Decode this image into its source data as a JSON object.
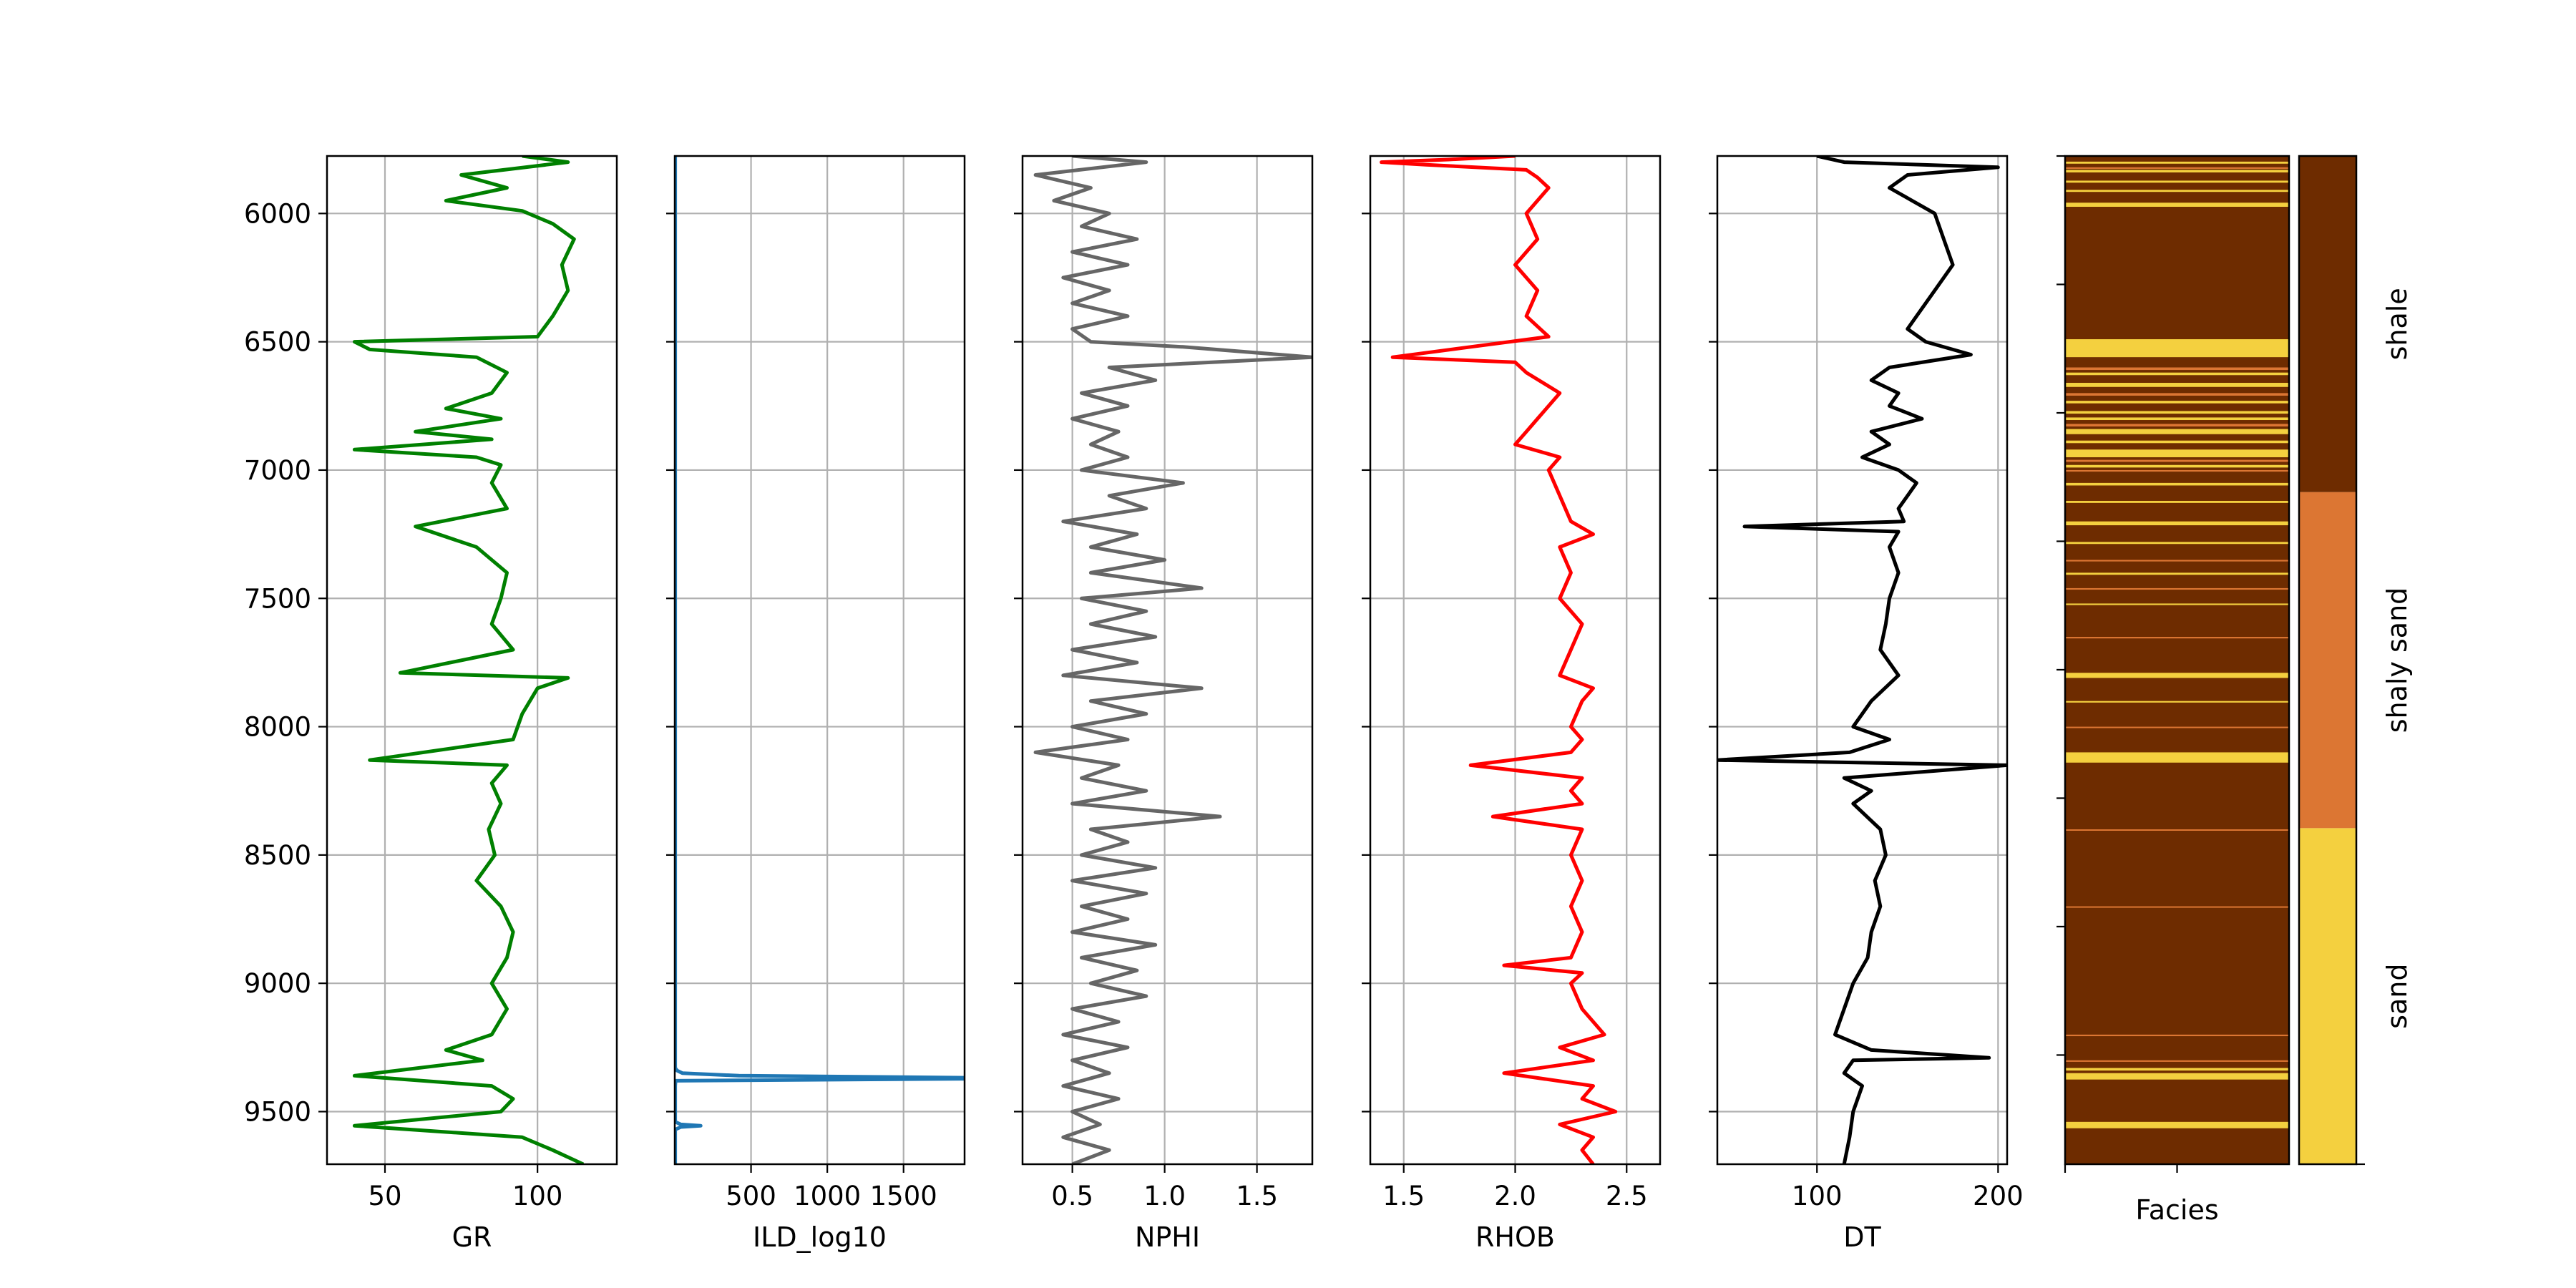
{
  "figure": {
    "y_axis": {
      "range": [
        5776,
        9705
      ],
      "inverted": true,
      "ticks": [
        6000,
        6500,
        7000,
        7500,
        8000,
        8500,
        9000,
        9500
      ],
      "tick_labels": [
        "6000",
        "6500",
        "7000",
        "7500",
        "8000",
        "8500",
        "9000",
        "9500"
      ]
    },
    "facies_colors": {
      "sand": "#F4D03F",
      "shaly sand": "#DC7633",
      "shale": "#6E2C00"
    },
    "facies_categories": [
      "sand",
      "shaly sand",
      "shale"
    ]
  },
  "chart_data": [
    {
      "type": "line",
      "xlabel": "GR",
      "color": "#008000",
      "xlim": [
        31,
        126
      ],
      "xticks": [
        50,
        100
      ],
      "xtick_labels": [
        "50",
        "100"
      ],
      "grid": true,
      "series": [
        {
          "depth": [
            5776,
            5800,
            5850,
            5900,
            5950,
            5990,
            6040,
            6100,
            6200,
            6300,
            6400,
            6480,
            6500,
            6530,
            6560,
            6620,
            6700,
            6760,
            6800,
            6850,
            6880,
            6920,
            6950,
            6980,
            7050,
            7150,
            7220,
            7300,
            7400,
            7500,
            7600,
            7700,
            7790,
            7810,
            7850,
            7950,
            8050,
            8130,
            8150,
            8220,
            8300,
            8400,
            8500,
            8600,
            8700,
            8800,
            8900,
            9000,
            9100,
            9200,
            9260,
            9300,
            9360,
            9400,
            9450,
            9500,
            9555,
            9600,
            9650,
            9705
          ],
          "values": [
            95,
            110,
            75,
            90,
            70,
            95,
            105,
            112,
            108,
            110,
            105,
            100,
            40,
            45,
            80,
            90,
            85,
            70,
            88,
            60,
            85,
            40,
            80,
            88,
            85,
            90,
            60,
            80,
            90,
            88,
            85,
            92,
            55,
            110,
            100,
            95,
            92,
            45,
            90,
            85,
            88,
            84,
            86,
            80,
            88,
            92,
            90,
            85,
            90,
            85,
            70,
            82,
            40,
            85,
            92,
            88,
            40,
            95,
            105,
            115
          ]
        }
      ]
    },
    {
      "type": "line",
      "xlabel": "ILD_log10",
      "color": "#1f77b4",
      "xlim": [
        0,
        1900
      ],
      "xticks": [
        500,
        1000,
        1500
      ],
      "xtick_labels": [
        "500",
        "1000",
        "1500"
      ],
      "grid": true,
      "series": [
        {
          "depth": [
            5776,
            9330,
            9340,
            9350,
            9360,
            9368,
            9372,
            9380,
            9400,
            9540,
            9550,
            9555,
            9560,
            9570,
            9705
          ],
          "values": [
            3,
            3,
            15,
            50,
            420,
            1900,
            1900,
            5,
            3,
            3,
            40,
            170,
            40,
            3,
            3
          ]
        }
      ]
    },
    {
      "type": "line",
      "xlabel": "NPHI",
      "color": "#666666",
      "xlim": [
        0.23,
        1.8
      ],
      "xticks": [
        0.5,
        1.0,
        1.5
      ],
      "xtick_labels": [
        "0.5",
        "1.0",
        "1.5"
      ],
      "grid": true,
      "series": [
        {
          "depth": [
            5776,
            5800,
            5850,
            5900,
            5950,
            6000,
            6050,
            6100,
            6150,
            6200,
            6250,
            6300,
            6350,
            6400,
            6450,
            6500,
            6520,
            6560,
            6600,
            6650,
            6700,
            6750,
            6800,
            6850,
            6900,
            6950,
            7000,
            7050,
            7100,
            7150,
            7200,
            7250,
            7300,
            7350,
            7400,
            7460,
            7500,
            7550,
            7600,
            7650,
            7700,
            7750,
            7800,
            7850,
            7900,
            7950,
            8000,
            8050,
            8100,
            8150,
            8200,
            8250,
            8300,
            8350,
            8400,
            8450,
            8500,
            8550,
            8600,
            8650,
            8700,
            8750,
            8800,
            8850,
            8900,
            8950,
            9000,
            9050,
            9100,
            9150,
            9200,
            9250,
            9300,
            9350,
            9400,
            9450,
            9500,
            9550,
            9600,
            9650,
            9705
          ],
          "values": [
            0.5,
            0.9,
            0.3,
            0.6,
            0.4,
            0.7,
            0.55,
            0.85,
            0.5,
            0.8,
            0.45,
            0.7,
            0.5,
            0.8,
            0.5,
            0.6,
            1.1,
            1.8,
            0.7,
            0.95,
            0.55,
            0.8,
            0.5,
            0.75,
            0.6,
            0.8,
            0.55,
            1.1,
            0.7,
            0.9,
            0.45,
            0.85,
            0.6,
            1.0,
            0.6,
            1.2,
            0.55,
            0.9,
            0.6,
            0.95,
            0.5,
            0.85,
            0.45,
            1.2,
            0.6,
            0.9,
            0.5,
            0.8,
            0.3,
            0.75,
            0.55,
            0.9,
            0.5,
            1.3,
            0.6,
            0.8,
            0.55,
            0.95,
            0.5,
            0.9,
            0.55,
            0.8,
            0.5,
            0.95,
            0.55,
            0.85,
            0.6,
            0.9,
            0.5,
            0.75,
            0.45,
            0.8,
            0.5,
            0.7,
            0.45,
            0.75,
            0.5,
            0.65,
            0.45,
            0.7,
            0.5
          ]
        }
      ]
    },
    {
      "type": "line",
      "xlabel": "RHOB",
      "color": "#ff0000",
      "xlim": [
        1.35,
        2.65
      ],
      "xticks": [
        1.5,
        2.0,
        2.5
      ],
      "xtick_labels": [
        "1.5",
        "2.0",
        "2.5"
      ],
      "grid": true,
      "series": [
        {
          "depth": [
            5776,
            5790,
            5800,
            5810,
            5830,
            5860,
            5900,
            6000,
            6100,
            6200,
            6300,
            6400,
            6480,
            6520,
            6560,
            6580,
            6620,
            6700,
            6800,
            6850,
            6900,
            6950,
            7000,
            7100,
            7200,
            7250,
            7300,
            7400,
            7500,
            7600,
            7700,
            7800,
            7850,
            7900,
            8000,
            8050,
            8100,
            8150,
            8200,
            8250,
            8300,
            8350,
            8400,
            8500,
            8600,
            8700,
            8800,
            8900,
            8930,
            8960,
            9000,
            9100,
            9200,
            9250,
            9300,
            9350,
            9400,
            9450,
            9500,
            9550,
            9600,
            9650,
            9705
          ],
          "values": [
            2.0,
            1.7,
            1.4,
            1.6,
            2.05,
            2.1,
            2.15,
            2.05,
            2.1,
            2.0,
            2.1,
            2.05,
            2.15,
            1.8,
            1.45,
            2.0,
            2.05,
            2.2,
            2.1,
            2.05,
            2.0,
            2.2,
            2.15,
            2.2,
            2.25,
            2.35,
            2.2,
            2.25,
            2.2,
            2.3,
            2.25,
            2.2,
            2.35,
            2.3,
            2.25,
            2.3,
            2.25,
            1.8,
            2.3,
            2.25,
            2.3,
            1.9,
            2.3,
            2.25,
            2.3,
            2.25,
            2.3,
            2.25,
            1.95,
            2.3,
            2.25,
            2.3,
            2.4,
            2.2,
            2.35,
            1.95,
            2.35,
            2.3,
            2.45,
            2.2,
            2.35,
            2.3,
            2.35
          ]
        }
      ]
    },
    {
      "type": "line",
      "xlabel": "DT",
      "color": "#000000",
      "xlim": [
        45,
        205
      ],
      "xticks": [
        100,
        200
      ],
      "xtick_labels": [
        "100",
        "200"
      ],
      "grid": true,
      "series": [
        {
          "depth": [
            5776,
            5800,
            5820,
            5850,
            5900,
            6000,
            6100,
            6200,
            6300,
            6400,
            6450,
            6500,
            6550,
            6600,
            6650,
            6700,
            6750,
            6800,
            6850,
            6900,
            6950,
            7000,
            7050,
            7100,
            7150,
            7200,
            7220,
            7240,
            7300,
            7400,
            7500,
            7600,
            7700,
            7800,
            7900,
            8000,
            8050,
            8100,
            8130,
            8150,
            8200,
            8250,
            8300,
            8400,
            8500,
            8600,
            8700,
            8800,
            8900,
            9000,
            9100,
            9200,
            9260,
            9290,
            9300,
            9350,
            9400,
            9500,
            9600,
            9705
          ],
          "values": [
            100,
            115,
            200,
            150,
            140,
            165,
            170,
            175,
            165,
            155,
            150,
            160,
            185,
            140,
            130,
            145,
            140,
            158,
            130,
            140,
            125,
            145,
            155,
            150,
            145,
            148,
            60,
            145,
            140,
            145,
            140,
            138,
            135,
            145,
            130,
            120,
            140,
            118,
            45,
            205,
            115,
            130,
            120,
            135,
            138,
            132,
            135,
            130,
            128,
            120,
            115,
            110,
            130,
            195,
            120,
            115,
            125,
            120,
            118,
            115
          ]
        }
      ]
    },
    {
      "type": "heatmap",
      "xlabel": "Facies",
      "color_order": [
        "sand",
        "shaly sand",
        "shale"
      ],
      "default_facies": "shale",
      "sand_intervals": [
        [
          5798,
          5806
        ],
        [
          5830,
          5840
        ],
        [
          5872,
          5880
        ],
        [
          5908,
          5916
        ],
        [
          5958,
          5974
        ],
        [
          6490,
          6560
        ],
        [
          6620,
          6630
        ],
        [
          6660,
          6676
        ],
        [
          6730,
          6740
        ],
        [
          6770,
          6780
        ],
        [
          6795,
          6805
        ],
        [
          6840,
          6860
        ],
        [
          6885,
          6895
        ],
        [
          6920,
          6950
        ],
        [
          6980,
          6990
        ],
        [
          7050,
          7060
        ],
        [
          7120,
          7128
        ],
        [
          7200,
          7215
        ],
        [
          7280,
          7288
        ],
        [
          7400,
          7408
        ],
        [
          7520,
          7526
        ],
        [
          7790,
          7810
        ],
        [
          7900,
          7906
        ],
        [
          8100,
          8140
        ],
        [
          9330,
          9340
        ],
        [
          9350,
          9375
        ],
        [
          9540,
          9565
        ]
      ],
      "shaly_intervals": [
        [
          5820,
          5826
        ],
        [
          6600,
          6610
        ],
        [
          6700,
          6710
        ],
        [
          6820,
          6830
        ],
        [
          6960,
          6968
        ],
        [
          7000,
          7006
        ],
        [
          7350,
          7356
        ],
        [
          7460,
          7466
        ],
        [
          7650,
          7656
        ],
        [
          8000,
          8004
        ],
        [
          8400,
          8404
        ],
        [
          8700,
          8704
        ],
        [
          9200,
          9206
        ],
        [
          9300,
          9306
        ]
      ]
    },
    {
      "type": "bar",
      "xlabel": "",
      "categories": [
        "sand",
        "shaly sand",
        "shale"
      ],
      "values": [
        1,
        2,
        3
      ],
      "orientation": "vertical-colorbar"
    }
  ]
}
